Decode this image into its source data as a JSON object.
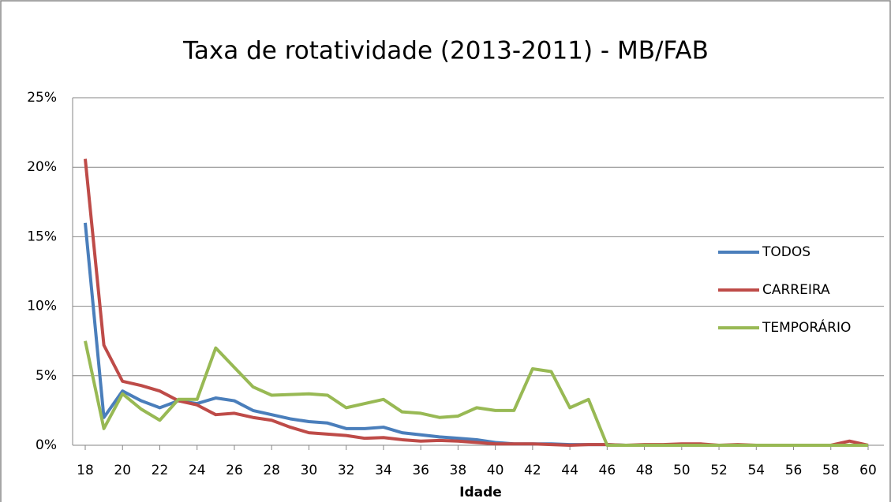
{
  "chart_data": {
    "type": "line",
    "title": "Taxa de rotatividade (2013-2011) - MB/FAB",
    "x_label": "Idade",
    "x": [
      18,
      19,
      20,
      21,
      22,
      23,
      24,
      25,
      26,
      27,
      28,
      29,
      30,
      31,
      32,
      33,
      34,
      35,
      36,
      37,
      38,
      39,
      40,
      41,
      42,
      43,
      44,
      45,
      46,
      47,
      48,
      49,
      50,
      51,
      52,
      53,
      54,
      55,
      56,
      57,
      58,
      59,
      60
    ],
    "xlim": [
      18,
      60
    ],
    "xticks": [
      18,
      20,
      22,
      24,
      26,
      28,
      30,
      32,
      34,
      36,
      38,
      40,
      42,
      44,
      46,
      48,
      50,
      52,
      54,
      56,
      58,
      60
    ],
    "ylim": [
      0,
      25
    ],
    "yticks": [
      {
        "value": 0,
        "label": "0%"
      },
      {
        "value": 5,
        "label": "5%"
      },
      {
        "value": 10,
        "label": "10%"
      },
      {
        "value": 15,
        "label": "15%"
      },
      {
        "value": 20,
        "label": "20%"
      },
      {
        "value": 25,
        "label": "25%"
      }
    ],
    "grid": true,
    "legend": "right",
    "series": [
      {
        "name": "TODOS",
        "color": "#4a7ebb",
        "values": [
          16.0,
          2.0,
          3.9,
          3.2,
          2.7,
          3.2,
          3.0,
          3.4,
          3.2,
          2.5,
          2.2,
          1.9,
          1.7,
          1.6,
          1.2,
          1.2,
          1.3,
          0.9,
          0.75,
          0.6,
          0.5,
          0.4,
          0.2,
          0.1,
          0.1,
          0.1,
          0.05,
          0.05,
          0.05,
          0,
          0,
          0,
          0.05,
          0,
          0,
          0,
          0,
          0,
          0,
          0,
          0,
          0,
          0
        ]
      },
      {
        "name": "CARREIRA",
        "color": "#be4b48",
        "values": [
          20.6,
          7.2,
          4.6,
          4.3,
          3.9,
          3.2,
          2.9,
          2.2,
          2.3,
          2.0,
          1.8,
          1.3,
          0.9,
          0.8,
          0.7,
          0.5,
          0.55,
          0.4,
          0.3,
          0.35,
          0.3,
          0.2,
          0.1,
          0.1,
          0.1,
          0.05,
          0,
          0.05,
          0.05,
          0,
          0.05,
          0.05,
          0.1,
          0.1,
          0,
          0.05,
          0,
          0,
          0,
          0,
          0,
          0.3,
          0
        ]
      },
      {
        "name": "TEMPORÁRIO",
        "color": "#98b954",
        "values": [
          7.5,
          1.2,
          3.7,
          2.6,
          1.8,
          3.3,
          3.3,
          7.0,
          5.6,
          4.2,
          3.6,
          3.65,
          3.7,
          3.6,
          2.7,
          3.0,
          3.3,
          2.4,
          2.3,
          2.0,
          2.1,
          2.7,
          2.5,
          2.5,
          5.5,
          5.3,
          2.7,
          3.3,
          0,
          0,
          0,
          0,
          0,
          0,
          0,
          0,
          0,
          0,
          0,
          0,
          0,
          0,
          0
        ]
      }
    ]
  }
}
